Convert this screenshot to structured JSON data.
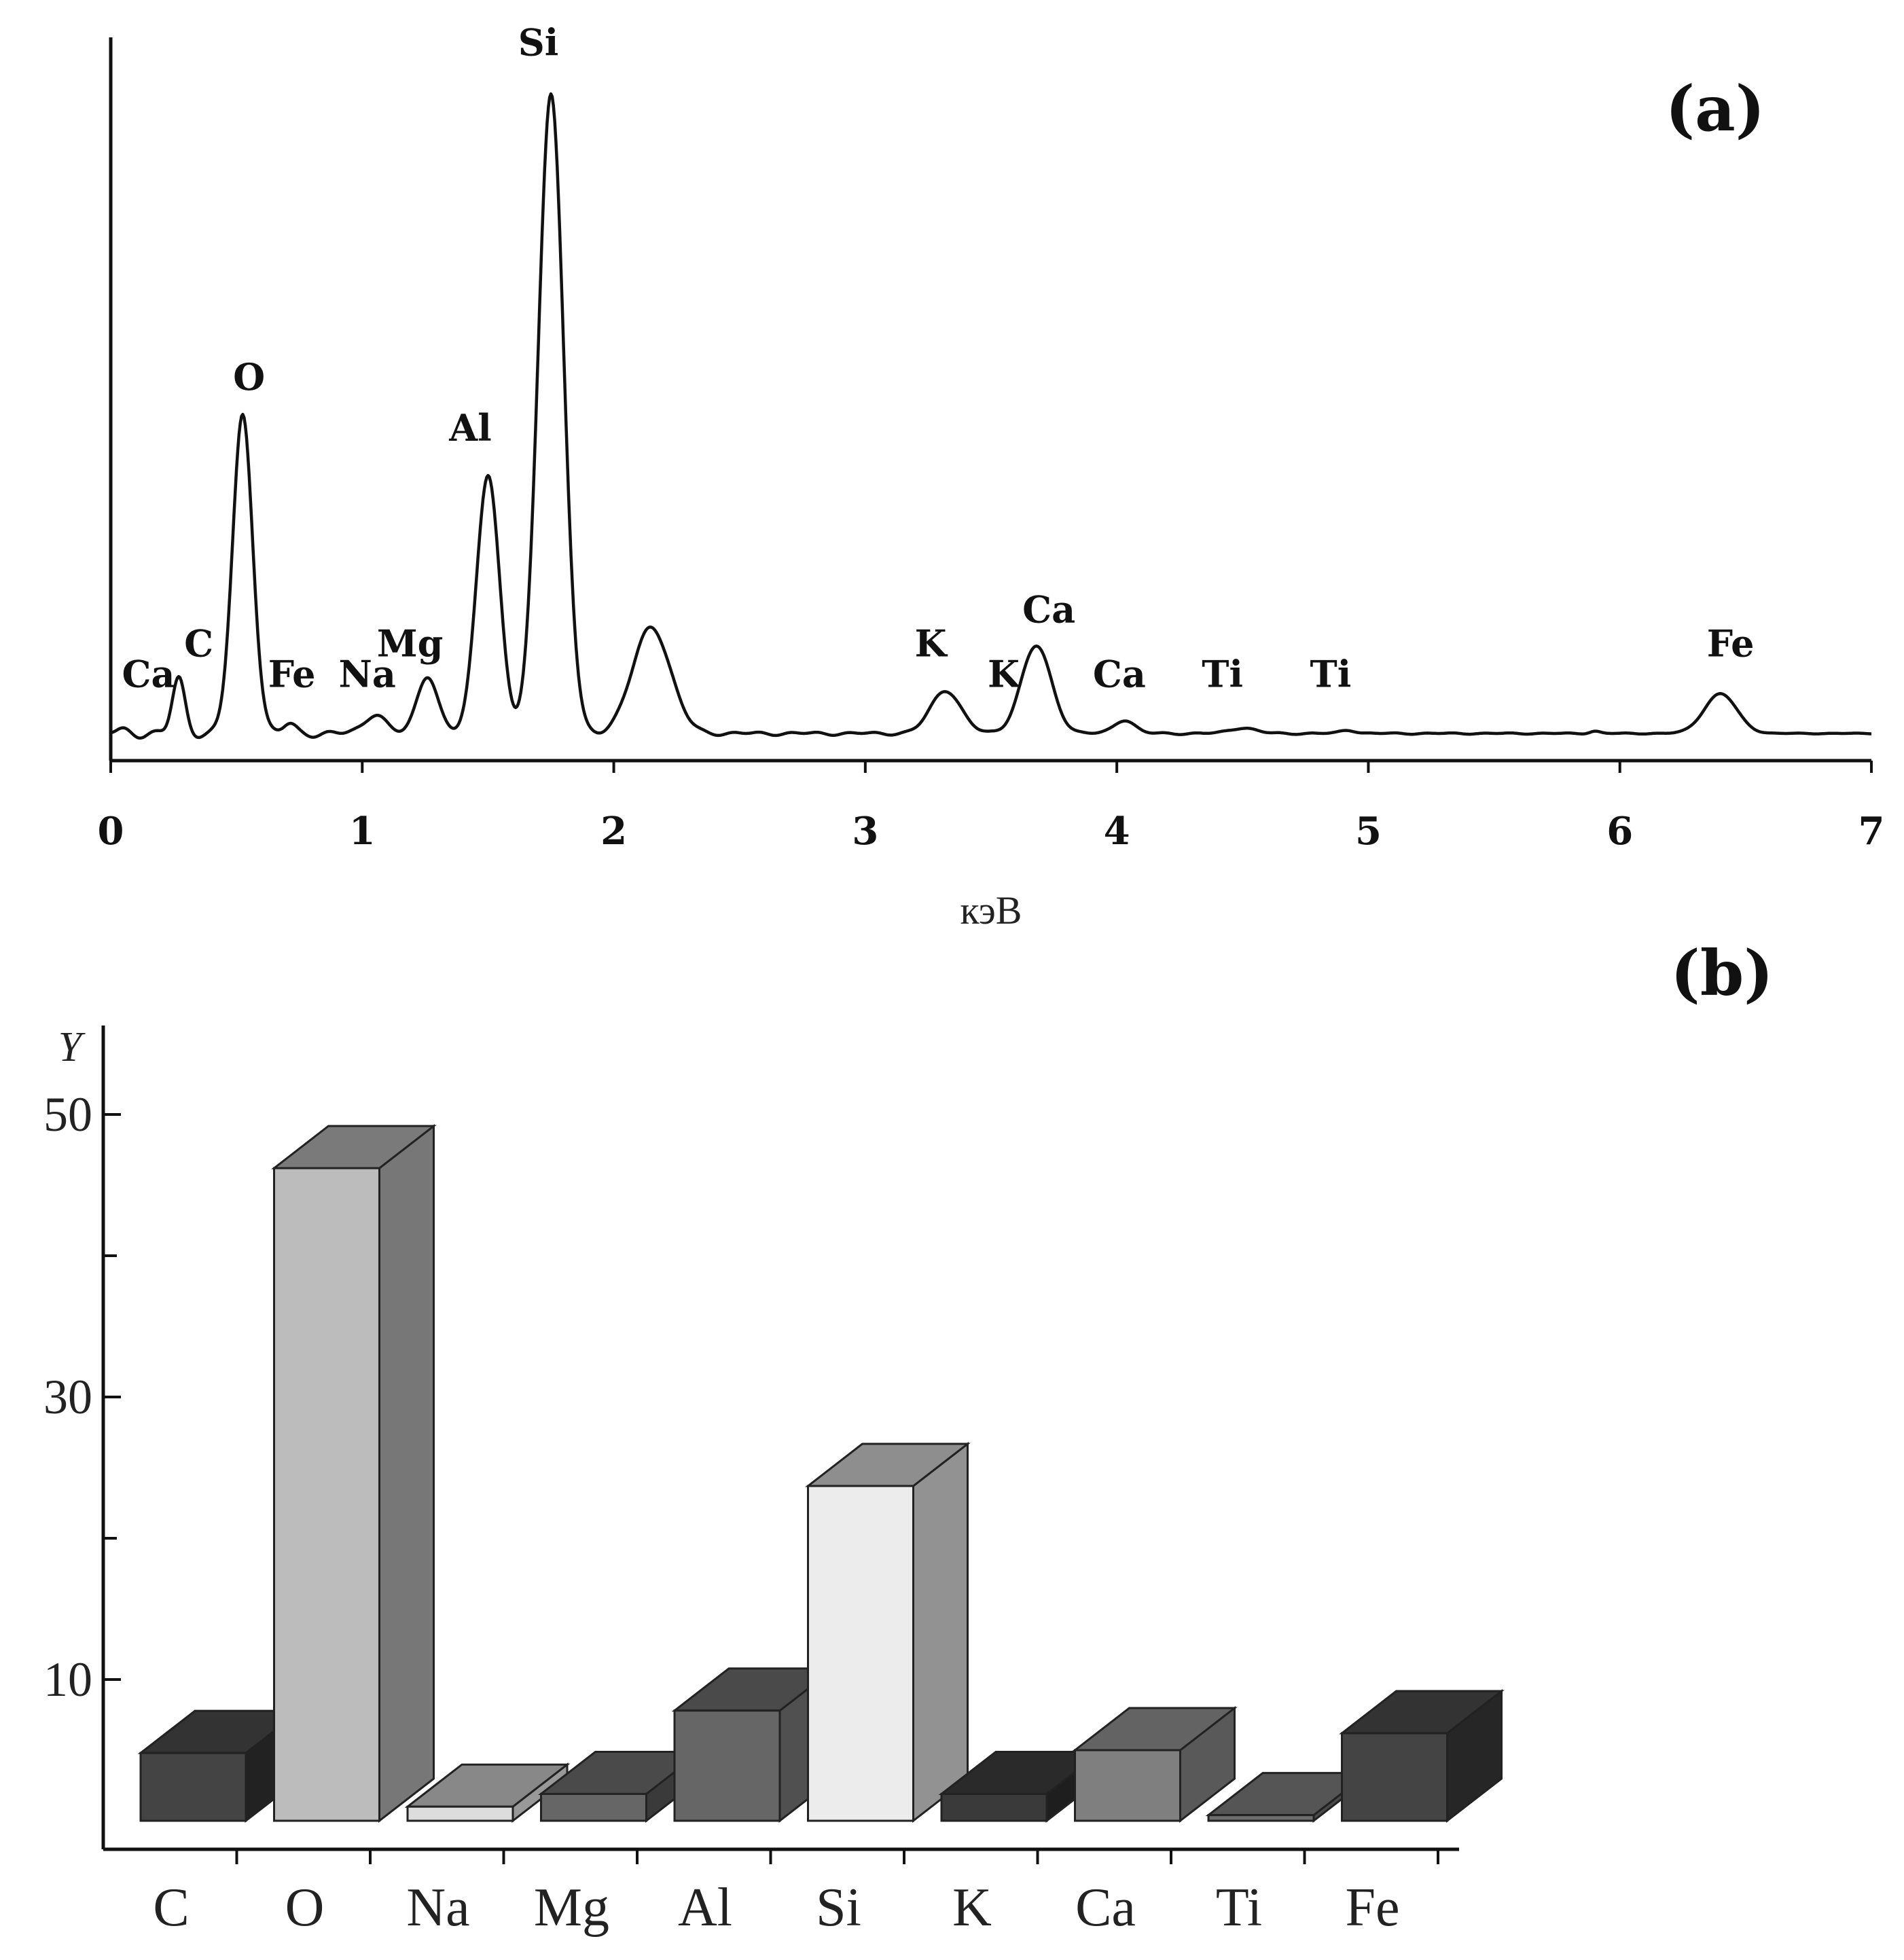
{
  "chart_data": [
    {
      "type": "line",
      "panel_label": "(a)",
      "xlabel": "кэВ",
      "ylabel": "",
      "xlim": [
        0,
        7
      ],
      "x_ticks": [
        "0",
        "1",
        "2",
        "3",
        "4",
        "5",
        "6",
        "7"
      ],
      "grid": false,
      "baseline": 1.2,
      "peaks": [
        {
          "x": 0.05,
          "h": 0.25,
          "w": 0.03
        },
        {
          "x": 0.27,
          "h": 4.8,
          "w": 0.025
        },
        {
          "x": 0.525,
          "h": 28.0,
          "w": 0.04
        },
        {
          "x": 0.71,
          "h": 0.8,
          "w": 0.025
        },
        {
          "x": 1.05,
          "h": 1.8,
          "w": 0.04
        },
        {
          "x": 1.26,
          "h": 5.2,
          "w": 0.04
        },
        {
          "x": 1.5,
          "h": 23.0,
          "w": 0.045
        },
        {
          "x": 1.75,
          "h": 56.5,
          "w": 0.05
        },
        {
          "x": 2.15,
          "h": 9.4,
          "w": 0.075
        },
        {
          "x": 3.32,
          "h": 3.8,
          "w": 0.06
        },
        {
          "x": 3.68,
          "h": 7.7,
          "w": 0.06
        },
        {
          "x": 4.03,
          "h": 1.2,
          "w": 0.04
        },
        {
          "x": 4.5,
          "h": 0.5,
          "w": 0.05
        },
        {
          "x": 4.92,
          "h": 0.3,
          "w": 0.03
        },
        {
          "x": 5.9,
          "h": 0.2,
          "w": 0.02
        },
        {
          "x": 6.4,
          "h": 3.5,
          "w": 0.065
        }
      ],
      "annotations": [
        {
          "text": "Ca",
          "x": 0.15,
          "y": 5.3
        },
        {
          "text": "C",
          "x": 0.35,
          "y": 8.0
        },
        {
          "text": "O",
          "x": 0.55,
          "y": 31.5
        },
        {
          "text": "Fe",
          "x": 0.72,
          "y": 5.3
        },
        {
          "text": "Na",
          "x": 1.02,
          "y": 5.3
        },
        {
          "text": "Mg",
          "x": 1.19,
          "y": 8.0
        },
        {
          "text": "Al",
          "x": 1.43,
          "y": 27.0
        },
        {
          "text": "Si",
          "x": 1.7,
          "y": 61.0
        },
        {
          "text": "K",
          "x": 3.26,
          "y": 8.0
        },
        {
          "text": "K",
          "x": 3.55,
          "y": 5.3
        },
        {
          "text": "Ca",
          "x": 3.73,
          "y": 11.0
        },
        {
          "text": "Ca",
          "x": 4.01,
          "y": 5.3
        },
        {
          "text": "Ti",
          "x": 4.42,
          "y": 5.3
        },
        {
          "text": "Ti",
          "x": 4.85,
          "y": 5.3
        },
        {
          "text": "Fe",
          "x": 6.44,
          "y": 8.0
        }
      ]
    },
    {
      "type": "bar",
      "panel_label": "(b)",
      "ylabel": "Y",
      "xlabel": "",
      "ylim": [
        0,
        57
      ],
      "y_ticks": [
        10,
        30,
        50
      ],
      "grid": false,
      "categories": [
        "C",
        "O",
        "Na",
        "Mg",
        "Al",
        "Si",
        "K",
        "Ca",
        "Ti",
        "Fe"
      ],
      "values": [
        4.8,
        46.2,
        1.0,
        1.9,
        7.8,
        23.7,
        1.9,
        5.0,
        0.4,
        6.2
      ],
      "colors": [
        {
          "front": "#444444",
          "top": "#333333",
          "side": "#222222"
        },
        {
          "front": "#bcbcbc",
          "top": "#7a7a7a",
          "side": "#777777"
        },
        {
          "front": "#dddddd",
          "top": "#888888",
          "side": "#999999"
        },
        {
          "front": "#666666",
          "top": "#4a4a4a",
          "side": "#3a3a3a"
        },
        {
          "front": "#666666",
          "top": "#4a4a4a",
          "side": "#505050"
        },
        {
          "front": "#ececec",
          "top": "#8e8e8e",
          "side": "#929292"
        },
        {
          "front": "#3a3a3a",
          "top": "#2a2a2a",
          "side": "#1e1e1e"
        },
        {
          "front": "#7f7f7f",
          "top": "#636363",
          "side": "#595959"
        },
        {
          "front": "#6e6e6e",
          "top": "#555555",
          "side": "#4a4a4a"
        },
        {
          "front": "#444444",
          "top": "#333333",
          "side": "#262626"
        }
      ]
    }
  ]
}
